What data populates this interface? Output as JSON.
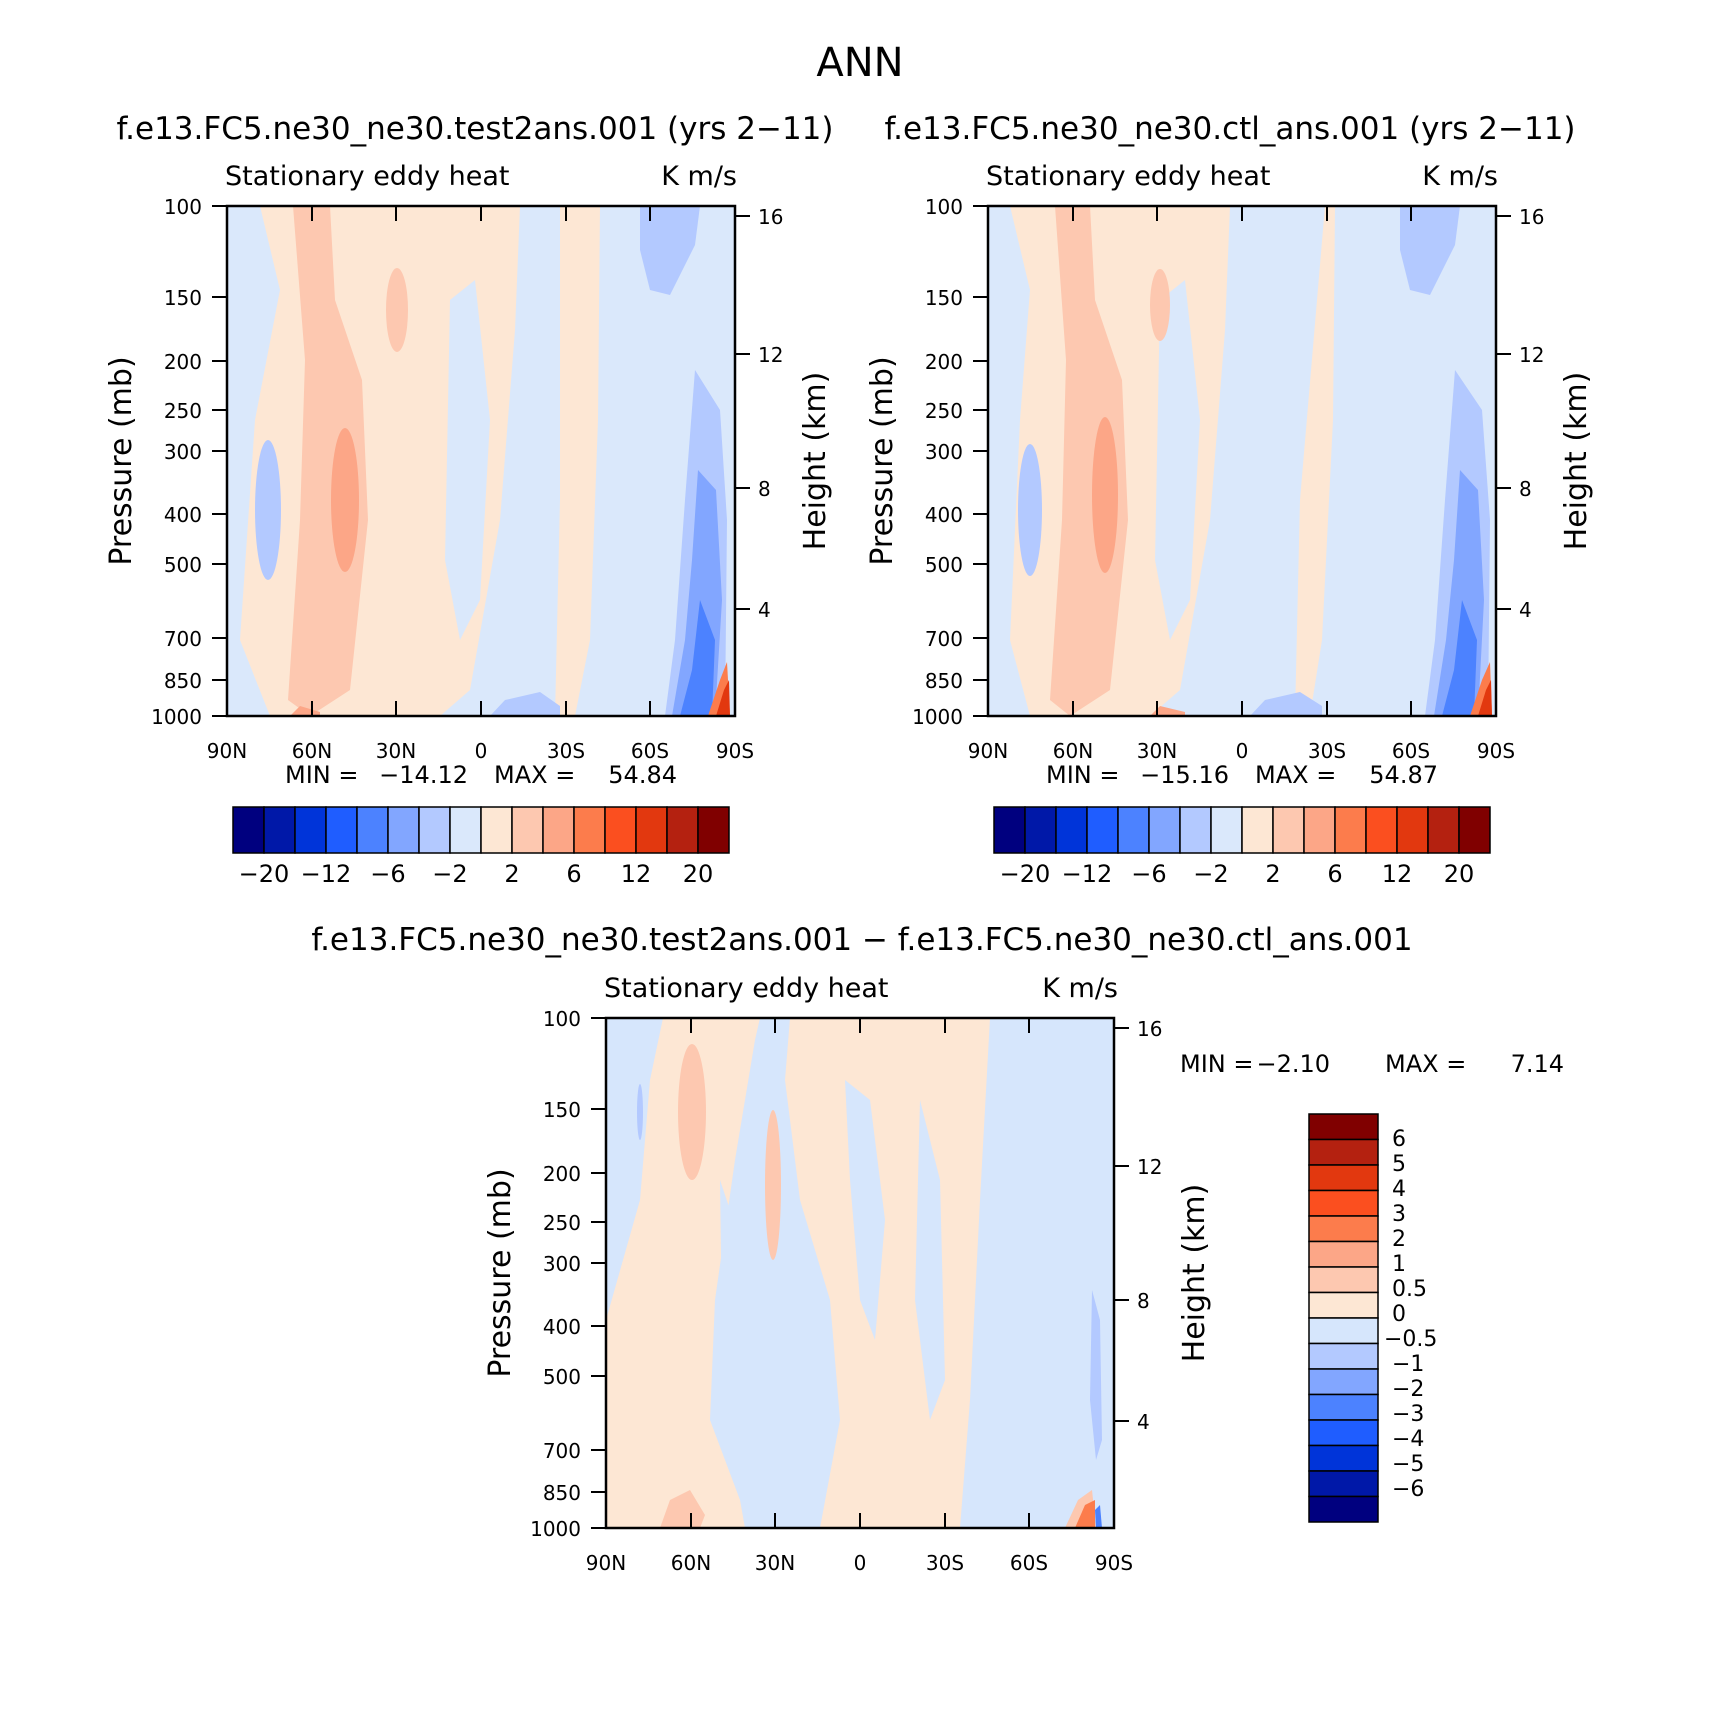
{
  "figure": {
    "title": "ANN",
    "min_label": "MIN =",
    "max_label": "MAX ="
  },
  "colors": {
    "test_ctl_levels": [
      "#00007f",
      "#0018a8",
      "#0034d9",
      "#1f5dff",
      "#4c82ff",
      "#82a6ff",
      "#b3c9ff",
      "#dae8fb",
      "#fde7d4",
      "#fdc8b0",
      "#fca687",
      "#fc7c4c",
      "#fb4f1f",
      "#e2380f",
      "#b42110",
      "#800000"
    ],
    "diff_levels": [
      "#00007f",
      "#0018a8",
      "#0034d9",
      "#1f5dff",
      "#4c82ff",
      "#82a6ff",
      "#b3c9ff",
      "#d6e6fc",
      "#fde7d4",
      "#fdc8b0",
      "#fca687",
      "#fc7c4c",
      "#fb4f1f",
      "#e2380f",
      "#b42110",
      "#800000"
    ]
  },
  "chart_data": [
    {
      "type": "heatmap",
      "case": "f.e13.FC5.ne30_ne30.test2ans.001 (yrs 2-11)",
      "title": "f.e13.FC5.ne30_ne30.test2ans.001 (yrs 2−11)",
      "left_label": "Stationary eddy heat",
      "right_label": "K m/s",
      "ylabel": "Pressure (mb)",
      "y2label": "Height (km)",
      "x_ticks": [
        "90N",
        "60N",
        "30N",
        "0",
        "30S",
        "60S",
        "90S"
      ],
      "y_ticks": [
        "100",
        "150",
        "200",
        "250",
        "300",
        "400",
        "500",
        "700",
        "850",
        "1000"
      ],
      "y2_ticks": [
        "16",
        "12",
        "8",
        "4"
      ],
      "min": "−14.12",
      "max": "54.84",
      "colorbar_labels": [
        "−20",
        "−12",
        "−6",
        "−2",
        "2",
        "6",
        "12",
        "20"
      ],
      "xlim": [
        "90N",
        "90S"
      ],
      "ylim": [
        1000,
        100
      ],
      "y_scale": "log"
    },
    {
      "type": "heatmap",
      "case": "f.e13.FC5.ne30_ne30.ctl_ans.001 (yrs 2-11)",
      "title": "f.e13.FC5.ne30_ne30.ctl_ans.001 (yrs 2−11)",
      "left_label": "Stationary eddy heat",
      "right_label": "K m/s",
      "ylabel": "Pressure (mb)",
      "y2label": "Height (km)",
      "x_ticks": [
        "90N",
        "60N",
        "30N",
        "0",
        "30S",
        "60S",
        "90S"
      ],
      "y_ticks": [
        "100",
        "150",
        "200",
        "250",
        "300",
        "400",
        "500",
        "700",
        "850",
        "1000"
      ],
      "y2_ticks": [
        "16",
        "12",
        "8",
        "4"
      ],
      "min": "−15.16",
      "max": "54.87",
      "colorbar_labels": [
        "−20",
        "−12",
        "−6",
        "−2",
        "2",
        "6",
        "12",
        "20"
      ],
      "xlim": [
        "90N",
        "90S"
      ],
      "ylim": [
        1000,
        100
      ],
      "y_scale": "log"
    },
    {
      "type": "heatmap",
      "case": "difference",
      "title": "f.e13.FC5.ne30_ne30.test2ans.001 − f.e13.FC5.ne30_ne30.ctl_ans.001",
      "left_label": "Stationary eddy heat",
      "right_label": "K m/s",
      "ylabel": "Pressure (mb)",
      "y2label": "Height (km)",
      "x_ticks": [
        "90N",
        "60N",
        "30N",
        "0",
        "30S",
        "60S",
        "90S"
      ],
      "y_ticks": [
        "100",
        "150",
        "200",
        "250",
        "300",
        "400",
        "500",
        "700",
        "850",
        "1000"
      ],
      "y2_ticks": [
        "16",
        "12",
        "8",
        "4"
      ],
      "min": "−2.10",
      "max": "7.14",
      "colorbar_labels": [
        "6",
        "5",
        "4",
        "3",
        "2",
        "1",
        "0.5",
        "0",
        "−0.5",
        "−1",
        "−2",
        "−3",
        "−4",
        "−5",
        "−6"
      ],
      "xlim": [
        "90N",
        "90S"
      ],
      "ylim": [
        1000,
        100
      ],
      "y_scale": "log"
    }
  ]
}
